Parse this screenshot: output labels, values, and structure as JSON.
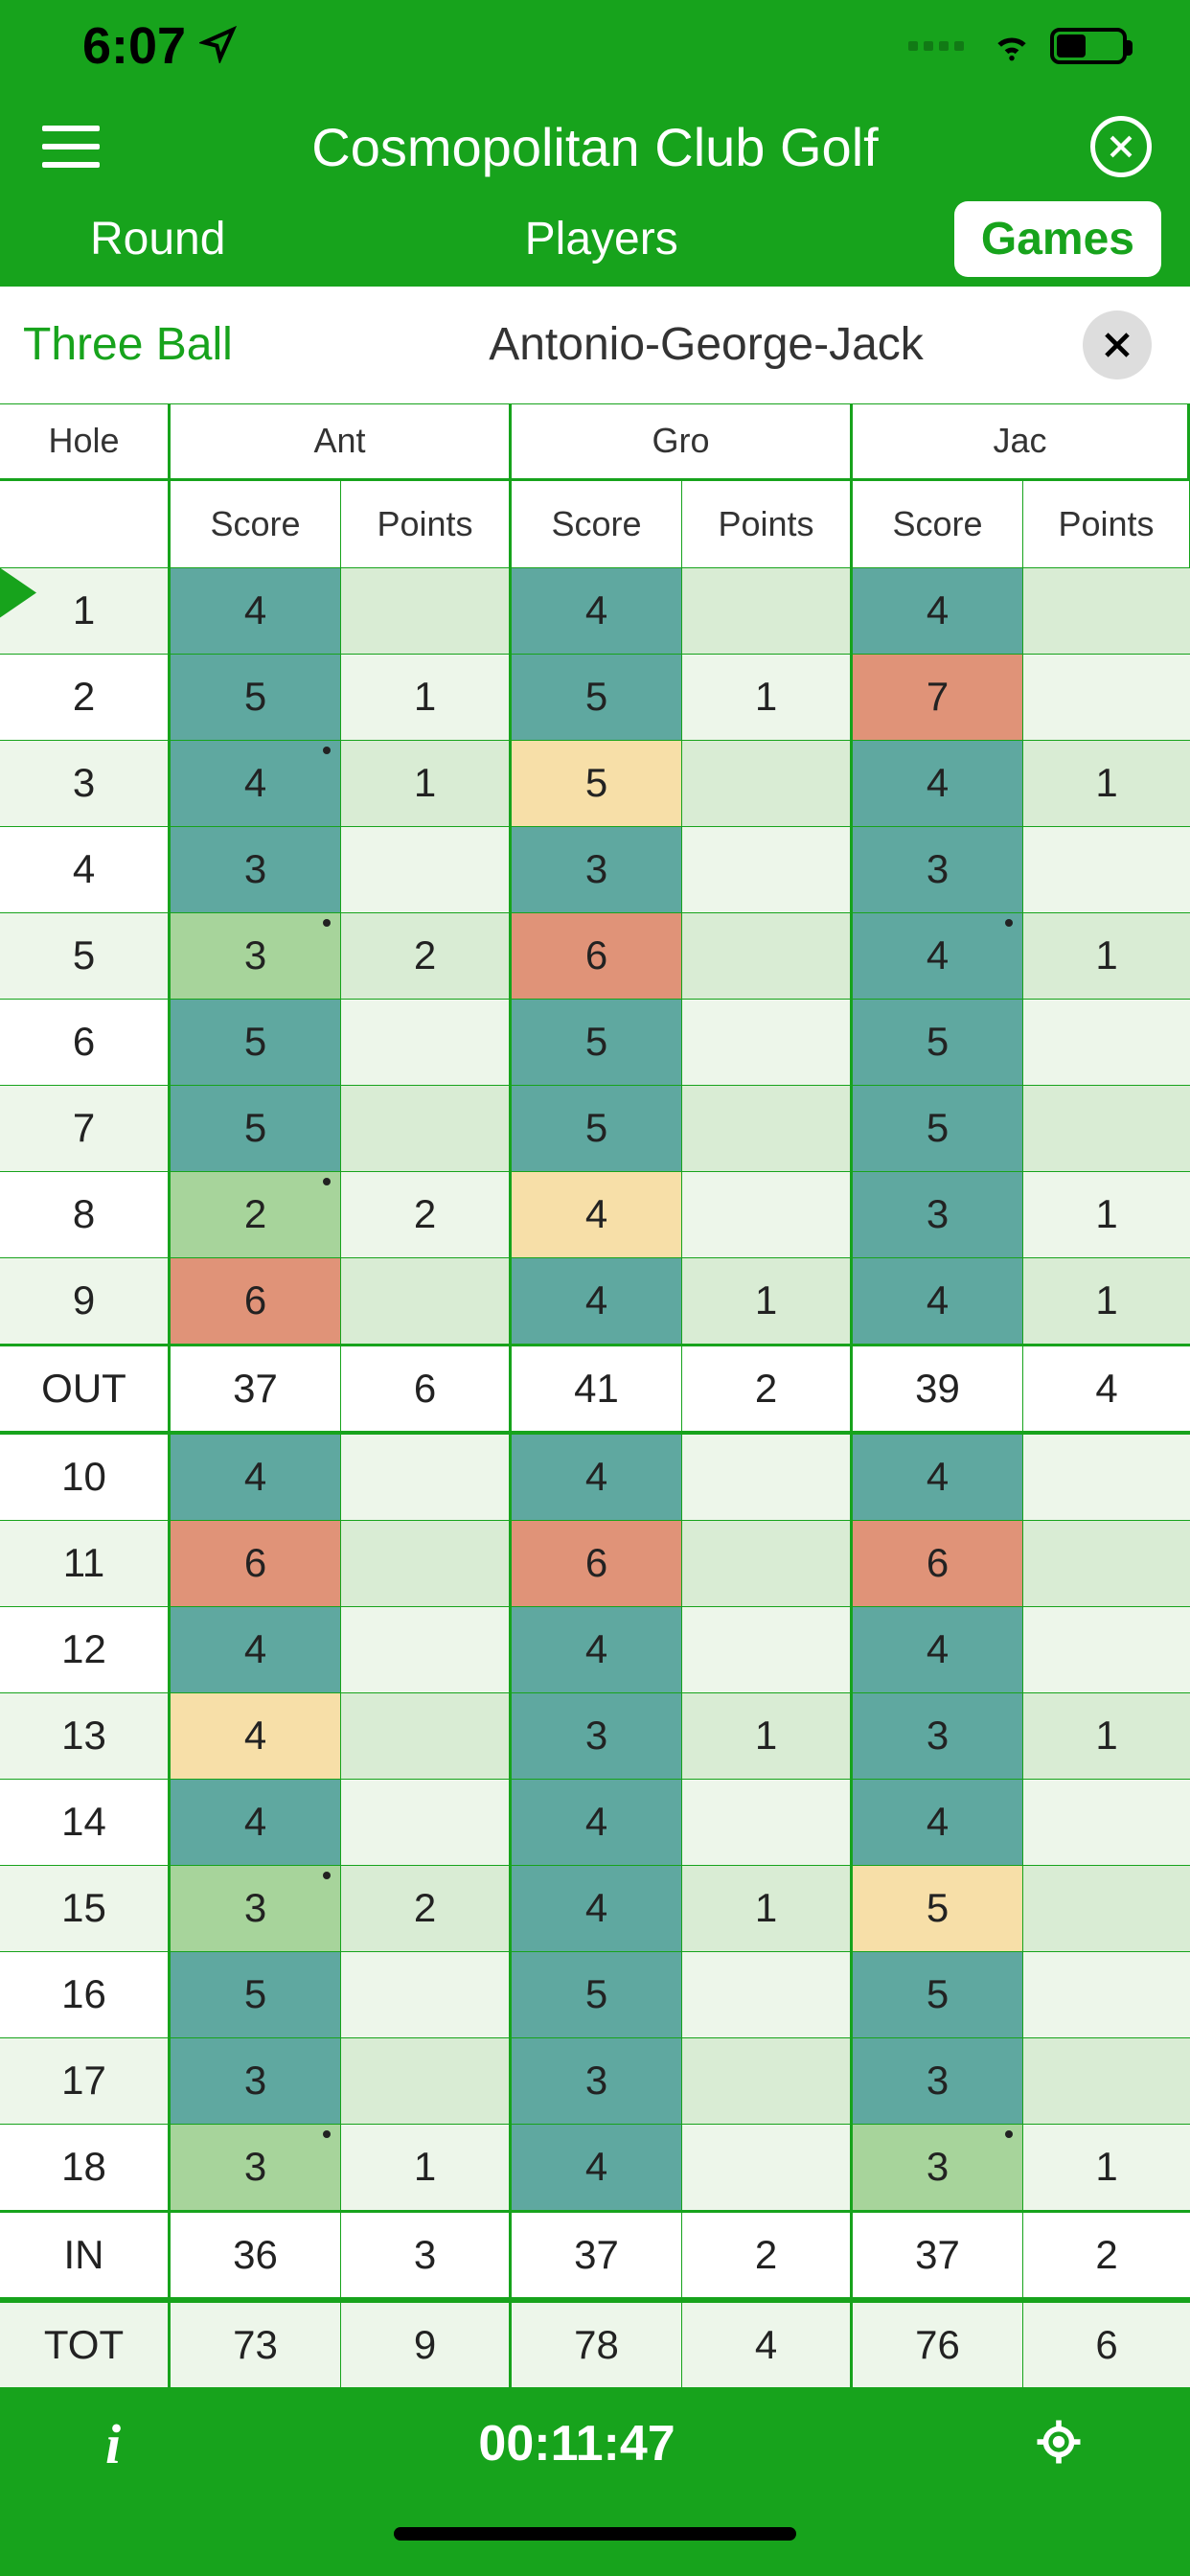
{
  "status": {
    "time": "6:07"
  },
  "nav": {
    "title": "Cosmopolitan Club Golf"
  },
  "tabs": {
    "round": "Round",
    "players": "Players",
    "games": "Games"
  },
  "subheader": {
    "left": "Three Ball",
    "title": "Antonio-George-Jack"
  },
  "headers": {
    "hole": "Hole",
    "players": [
      "Ant",
      "Gro",
      "Jac"
    ],
    "score": "Score",
    "points": "Points"
  },
  "colors": {
    "green_bg": "#17a31c",
    "teal": "#5fa8a0",
    "lightgreen": "#d9ecd4",
    "paleyellow": "#f7dfa8",
    "coral": "#e09378",
    "birdie_green": "#a7d49b",
    "white": "#ffffff",
    "row_alt": "#edf6ea"
  },
  "summaries": {
    "out": {
      "label": "OUT",
      "ant_s": "37",
      "ant_p": "6",
      "gro_s": "41",
      "gro_p": "2",
      "jac_s": "39",
      "jac_p": "4"
    },
    "in": {
      "label": "IN",
      "ant_s": "36",
      "ant_p": "3",
      "gro_s": "37",
      "gro_p": "2",
      "jac_s": "37",
      "jac_p": "2"
    },
    "tot": {
      "label": "TOT",
      "ant_s": "73",
      "ant_p": "9",
      "gro_s": "78",
      "gro_p": "4",
      "jac_s": "76",
      "jac_p": "6"
    }
  },
  "rows": [
    {
      "hole": "1",
      "flag": true,
      "ant_s": "4",
      "ant_sc": "teal",
      "ant_p": "",
      "ant_d": false,
      "gro_s": "4",
      "gro_sc": "teal",
      "gro_p": "",
      "jac_s": "4",
      "jac_sc": "teal",
      "jac_p": "",
      "jac_d": false
    },
    {
      "hole": "2",
      "ant_s": "5",
      "ant_sc": "teal",
      "ant_p": "1",
      "ant_d": false,
      "gro_s": "5",
      "gro_sc": "teal",
      "gro_p": "1",
      "jac_s": "7",
      "jac_sc": "coral",
      "jac_p": "",
      "jac_d": false
    },
    {
      "hole": "3",
      "ant_s": "4",
      "ant_sc": "teal",
      "ant_p": "1",
      "ant_d": true,
      "gro_s": "5",
      "gro_sc": "paleyellow",
      "gro_p": "",
      "jac_s": "4",
      "jac_sc": "teal",
      "jac_p": "1",
      "jac_d": false
    },
    {
      "hole": "4",
      "ant_s": "3",
      "ant_sc": "teal",
      "ant_p": "",
      "ant_d": false,
      "gro_s": "3",
      "gro_sc": "teal",
      "gro_p": "",
      "jac_s": "3",
      "jac_sc": "teal",
      "jac_p": "",
      "jac_d": false
    },
    {
      "hole": "5",
      "ant_s": "3",
      "ant_sc": "birdie_green",
      "ant_p": "2",
      "ant_d": true,
      "gro_s": "6",
      "gro_sc": "coral",
      "gro_p": "",
      "jac_s": "4",
      "jac_sc": "teal",
      "jac_p": "1",
      "jac_d": true
    },
    {
      "hole": "6",
      "ant_s": "5",
      "ant_sc": "teal",
      "ant_p": "",
      "ant_d": false,
      "gro_s": "5",
      "gro_sc": "teal",
      "gro_p": "",
      "jac_s": "5",
      "jac_sc": "teal",
      "jac_p": "",
      "jac_d": false
    },
    {
      "hole": "7",
      "ant_s": "5",
      "ant_sc": "teal",
      "ant_p": "",
      "ant_d": false,
      "gro_s": "5",
      "gro_sc": "teal",
      "gro_p": "",
      "jac_s": "5",
      "jac_sc": "teal",
      "jac_p": "",
      "jac_d": false
    },
    {
      "hole": "8",
      "ant_s": "2",
      "ant_sc": "birdie_green",
      "ant_p": "2",
      "ant_d": true,
      "gro_s": "4",
      "gro_sc": "paleyellow",
      "gro_p": "",
      "jac_s": "3",
      "jac_sc": "teal",
      "jac_p": "1",
      "jac_d": false
    },
    {
      "hole": "9",
      "ant_s": "6",
      "ant_sc": "coral",
      "ant_p": "",
      "ant_d": false,
      "gro_s": "4",
      "gro_sc": "teal",
      "gro_p": "1",
      "jac_s": "4",
      "jac_sc": "teal",
      "jac_p": "1",
      "jac_d": false
    },
    {
      "hole": "10",
      "ant_s": "4",
      "ant_sc": "teal",
      "ant_p": "",
      "ant_d": false,
      "gro_s": "4",
      "gro_sc": "teal",
      "gro_p": "",
      "jac_s": "4",
      "jac_sc": "teal",
      "jac_p": "",
      "jac_d": false
    },
    {
      "hole": "11",
      "ant_s": "6",
      "ant_sc": "coral",
      "ant_p": "",
      "ant_d": false,
      "gro_s": "6",
      "gro_sc": "coral",
      "gro_p": "",
      "jac_s": "6",
      "jac_sc": "coral",
      "jac_p": "",
      "jac_d": false
    },
    {
      "hole": "12",
      "ant_s": "4",
      "ant_sc": "teal",
      "ant_p": "",
      "ant_d": false,
      "gro_s": "4",
      "gro_sc": "teal",
      "gro_p": "",
      "jac_s": "4",
      "jac_sc": "teal",
      "jac_p": "",
      "jac_d": false
    },
    {
      "hole": "13",
      "ant_s": "4",
      "ant_sc": "paleyellow",
      "ant_p": "",
      "ant_d": false,
      "gro_s": "3",
      "gro_sc": "teal",
      "gro_p": "1",
      "jac_s": "3",
      "jac_sc": "teal",
      "jac_p": "1",
      "jac_d": false
    },
    {
      "hole": "14",
      "ant_s": "4",
      "ant_sc": "teal",
      "ant_p": "",
      "ant_d": false,
      "gro_s": "4",
      "gro_sc": "teal",
      "gro_p": "",
      "jac_s": "4",
      "jac_sc": "teal",
      "jac_p": "",
      "jac_d": false
    },
    {
      "hole": "15",
      "ant_s": "3",
      "ant_sc": "birdie_green",
      "ant_p": "2",
      "ant_d": true,
      "gro_s": "4",
      "gro_sc": "teal",
      "gro_p": "1",
      "jac_s": "5",
      "jac_sc": "paleyellow",
      "jac_p": "",
      "jac_d": false
    },
    {
      "hole": "16",
      "ant_s": "5",
      "ant_sc": "teal",
      "ant_p": "",
      "ant_d": false,
      "gro_s": "5",
      "gro_sc": "teal",
      "gro_p": "",
      "jac_s": "5",
      "jac_sc": "teal",
      "jac_p": "",
      "jac_d": false
    },
    {
      "hole": "17",
      "ant_s": "3",
      "ant_sc": "teal",
      "ant_p": "",
      "ant_d": false,
      "gro_s": "3",
      "gro_sc": "teal",
      "gro_p": "",
      "jac_s": "3",
      "jac_sc": "teal",
      "jac_p": "",
      "jac_d": false
    },
    {
      "hole": "18",
      "ant_s": "3",
      "ant_sc": "birdie_green",
      "ant_p": "1",
      "ant_d": true,
      "gro_s": "4",
      "gro_sc": "teal",
      "gro_p": "",
      "jac_s": "3",
      "jac_sc": "birdie_green",
      "jac_p": "1",
      "jac_d": true
    }
  ],
  "bottom": {
    "timer": "00:11:47"
  }
}
